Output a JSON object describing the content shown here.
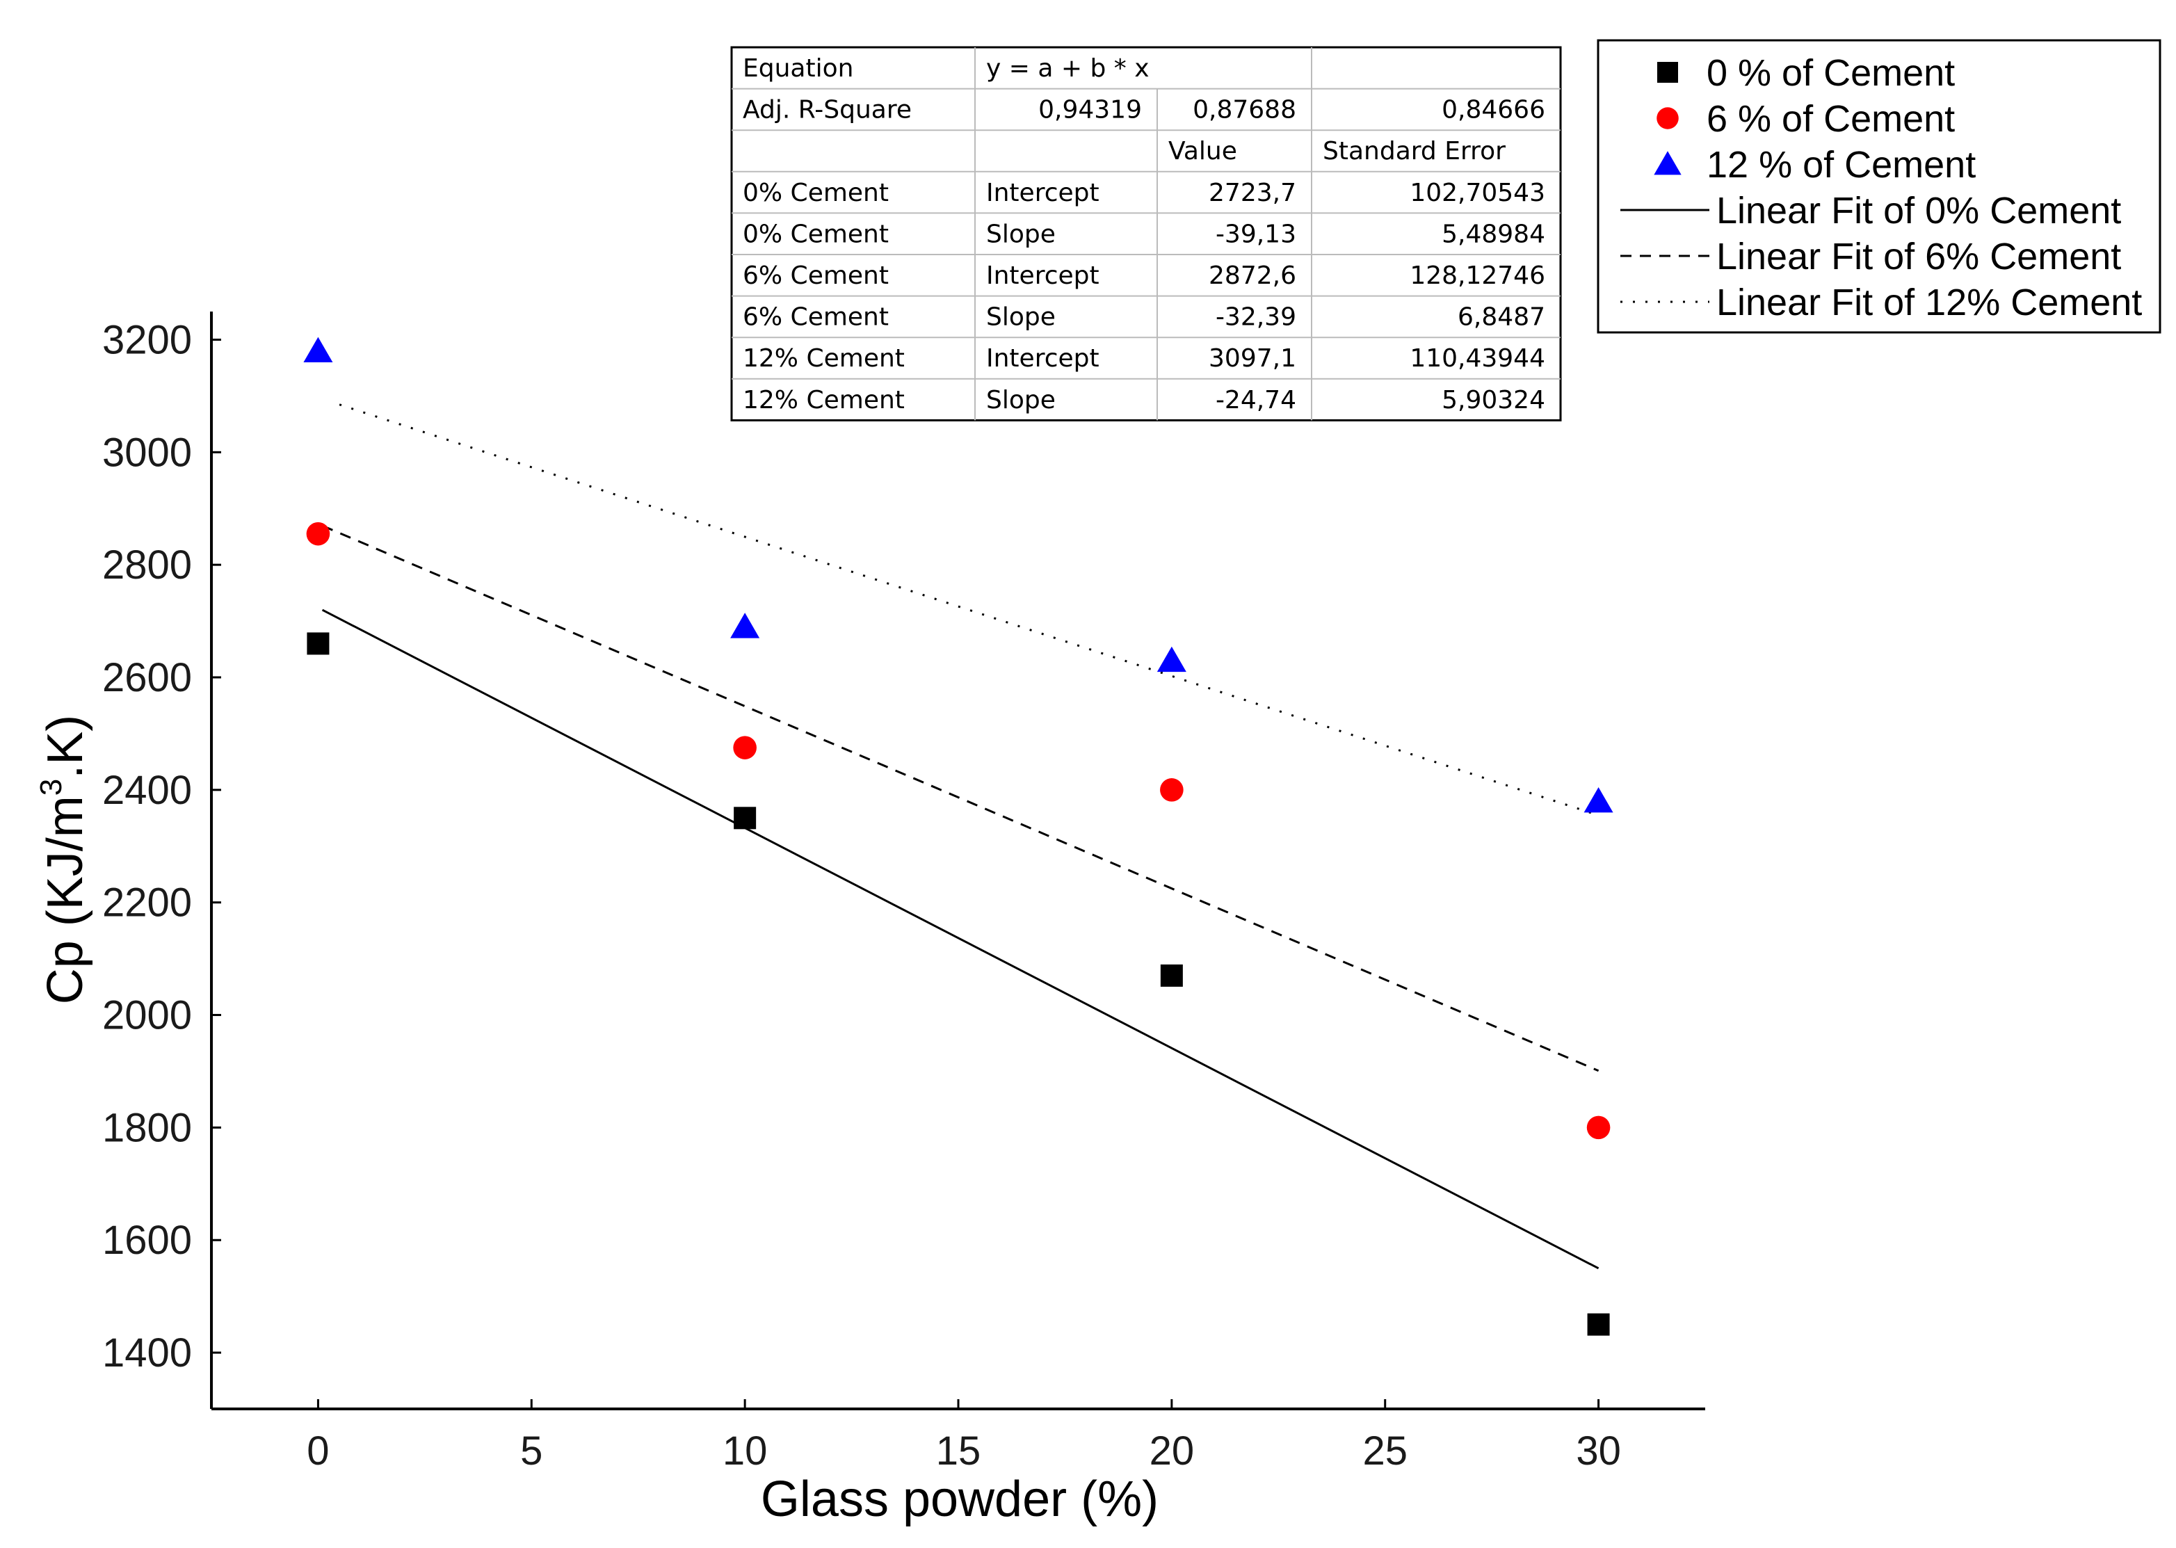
{
  "chart_data": {
    "type": "scatter",
    "title": "",
    "xlabel": "Glass powder (%)",
    "ylabel_main": "Cp (KJ/m",
    "ylabel_sup": "3",
    "ylabel_tail": ".K)",
    "xlim": [
      -2.5,
      32.5
    ],
    "ylim": [
      1300,
      3250
    ],
    "xticks": [
      0,
      5,
      10,
      15,
      20,
      25,
      30
    ],
    "yticks": [
      1400,
      1600,
      1800,
      2000,
      2200,
      2400,
      2600,
      2800,
      3000,
      3200
    ],
    "grid": false,
    "legend_position": "top-right",
    "series": [
      {
        "name": "0 % of Cement",
        "marker": "square",
        "color": "#000000",
        "x": [
          0,
          10,
          20,
          30
        ],
        "y": [
          2660,
          2350,
          2070,
          1450
        ]
      },
      {
        "name": "6 % of Cement",
        "marker": "circle",
        "color": "#ff0000",
        "x": [
          0,
          10,
          20,
          30
        ],
        "y": [
          2855,
          2475,
          2400,
          1800
        ]
      },
      {
        "name": "12 % of Cement",
        "marker": "triangle",
        "color": "#0000ff",
        "x": [
          0,
          10,
          20,
          30
        ],
        "y": [
          3180,
          2690,
          2630,
          2380
        ]
      }
    ],
    "fits": [
      {
        "name": "Linear Fit of 0% Cement",
        "style": "solid",
        "intercept": 2723.7,
        "slope": -39.13,
        "x_range": [
          0.1,
          30
        ]
      },
      {
        "name": "Linear Fit of 6% Cement",
        "style": "dashed",
        "intercept": 2872.6,
        "slope": -32.39,
        "x_range": [
          0.1,
          30
        ]
      },
      {
        "name": "Linear Fit of 12% Cement",
        "style": "dotted",
        "intercept": 3097.1,
        "slope": -24.74,
        "x_range": [
          0.5,
          30
        ]
      }
    ],
    "stats_table": {
      "rows": [
        [
          "Equation",
          "y = a + b * x",
          "",
          ""
        ],
        [
          "Adj. R-Square",
          "0,94319",
          "0,87688",
          "0,84666"
        ],
        [
          "",
          "",
          "Value",
          "Standard Error"
        ],
        [
          "0% Cement",
          "Intercept",
          "2723,7",
          "102,70543"
        ],
        [
          "0% Cement",
          "Slope",
          "-39,13",
          "5,48984"
        ],
        [
          "6% Cement",
          "Intercept",
          "2872,6",
          "128,12746"
        ],
        [
          "6% Cement",
          "Slope",
          "-32,39",
          "6,8487"
        ],
        [
          "12% Cement",
          "Intercept",
          "3097,1",
          "110,43944"
        ],
        [
          "12% Cement",
          "Slope",
          "-24,74",
          "5,90324"
        ]
      ],
      "align": [
        [
          "left",
          "left",
          "left",
          "left"
        ],
        [
          "left",
          "right",
          "right",
          "right"
        ],
        [
          "left",
          "left",
          "left",
          "left"
        ],
        [
          "left",
          "left",
          "right",
          "right"
        ],
        [
          "left",
          "left",
          "right",
          "right"
        ],
        [
          "left",
          "left",
          "right",
          "right"
        ],
        [
          "left",
          "left",
          "right",
          "right"
        ],
        [
          "left",
          "left",
          "right",
          "right"
        ],
        [
          "left",
          "left",
          "right",
          "right"
        ]
      ]
    }
  }
}
